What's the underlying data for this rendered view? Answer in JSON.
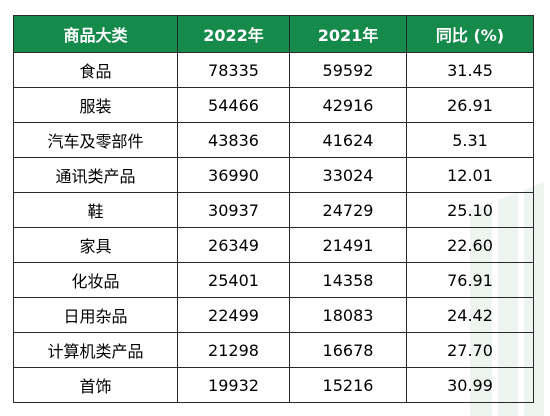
{
  "chart_data": {
    "type": "table",
    "columns": [
      "商品大类",
      "2022年",
      "2021年",
      "同比 (%)"
    ],
    "rows": [
      [
        "食品",
        "78335",
        "59592",
        "31.45"
      ],
      [
        "服装",
        "54466",
        "42916",
        "26.91"
      ],
      [
        "汽车及零部件",
        "43836",
        "41624",
        "5.31"
      ],
      [
        "通讯类产品",
        "36990",
        "33024",
        "12.01"
      ],
      [
        "鞋",
        "30937",
        "24729",
        "25.10"
      ],
      [
        "家具",
        "26349",
        "21491",
        "22.60"
      ],
      [
        "化妆品",
        "25401",
        "14358",
        "76.91"
      ],
      [
        "日用杂品",
        "22499",
        "18083",
        "24.42"
      ],
      [
        "计算机类产品",
        "21298",
        "16678",
        "27.70"
      ],
      [
        "首饰",
        "19932",
        "15216",
        "30.99"
      ]
    ],
    "colors": {
      "header_bg": "#168a4a",
      "header_text": "#ffffff",
      "border": "#2a2a2a",
      "watermark": "#eef4ef"
    }
  }
}
